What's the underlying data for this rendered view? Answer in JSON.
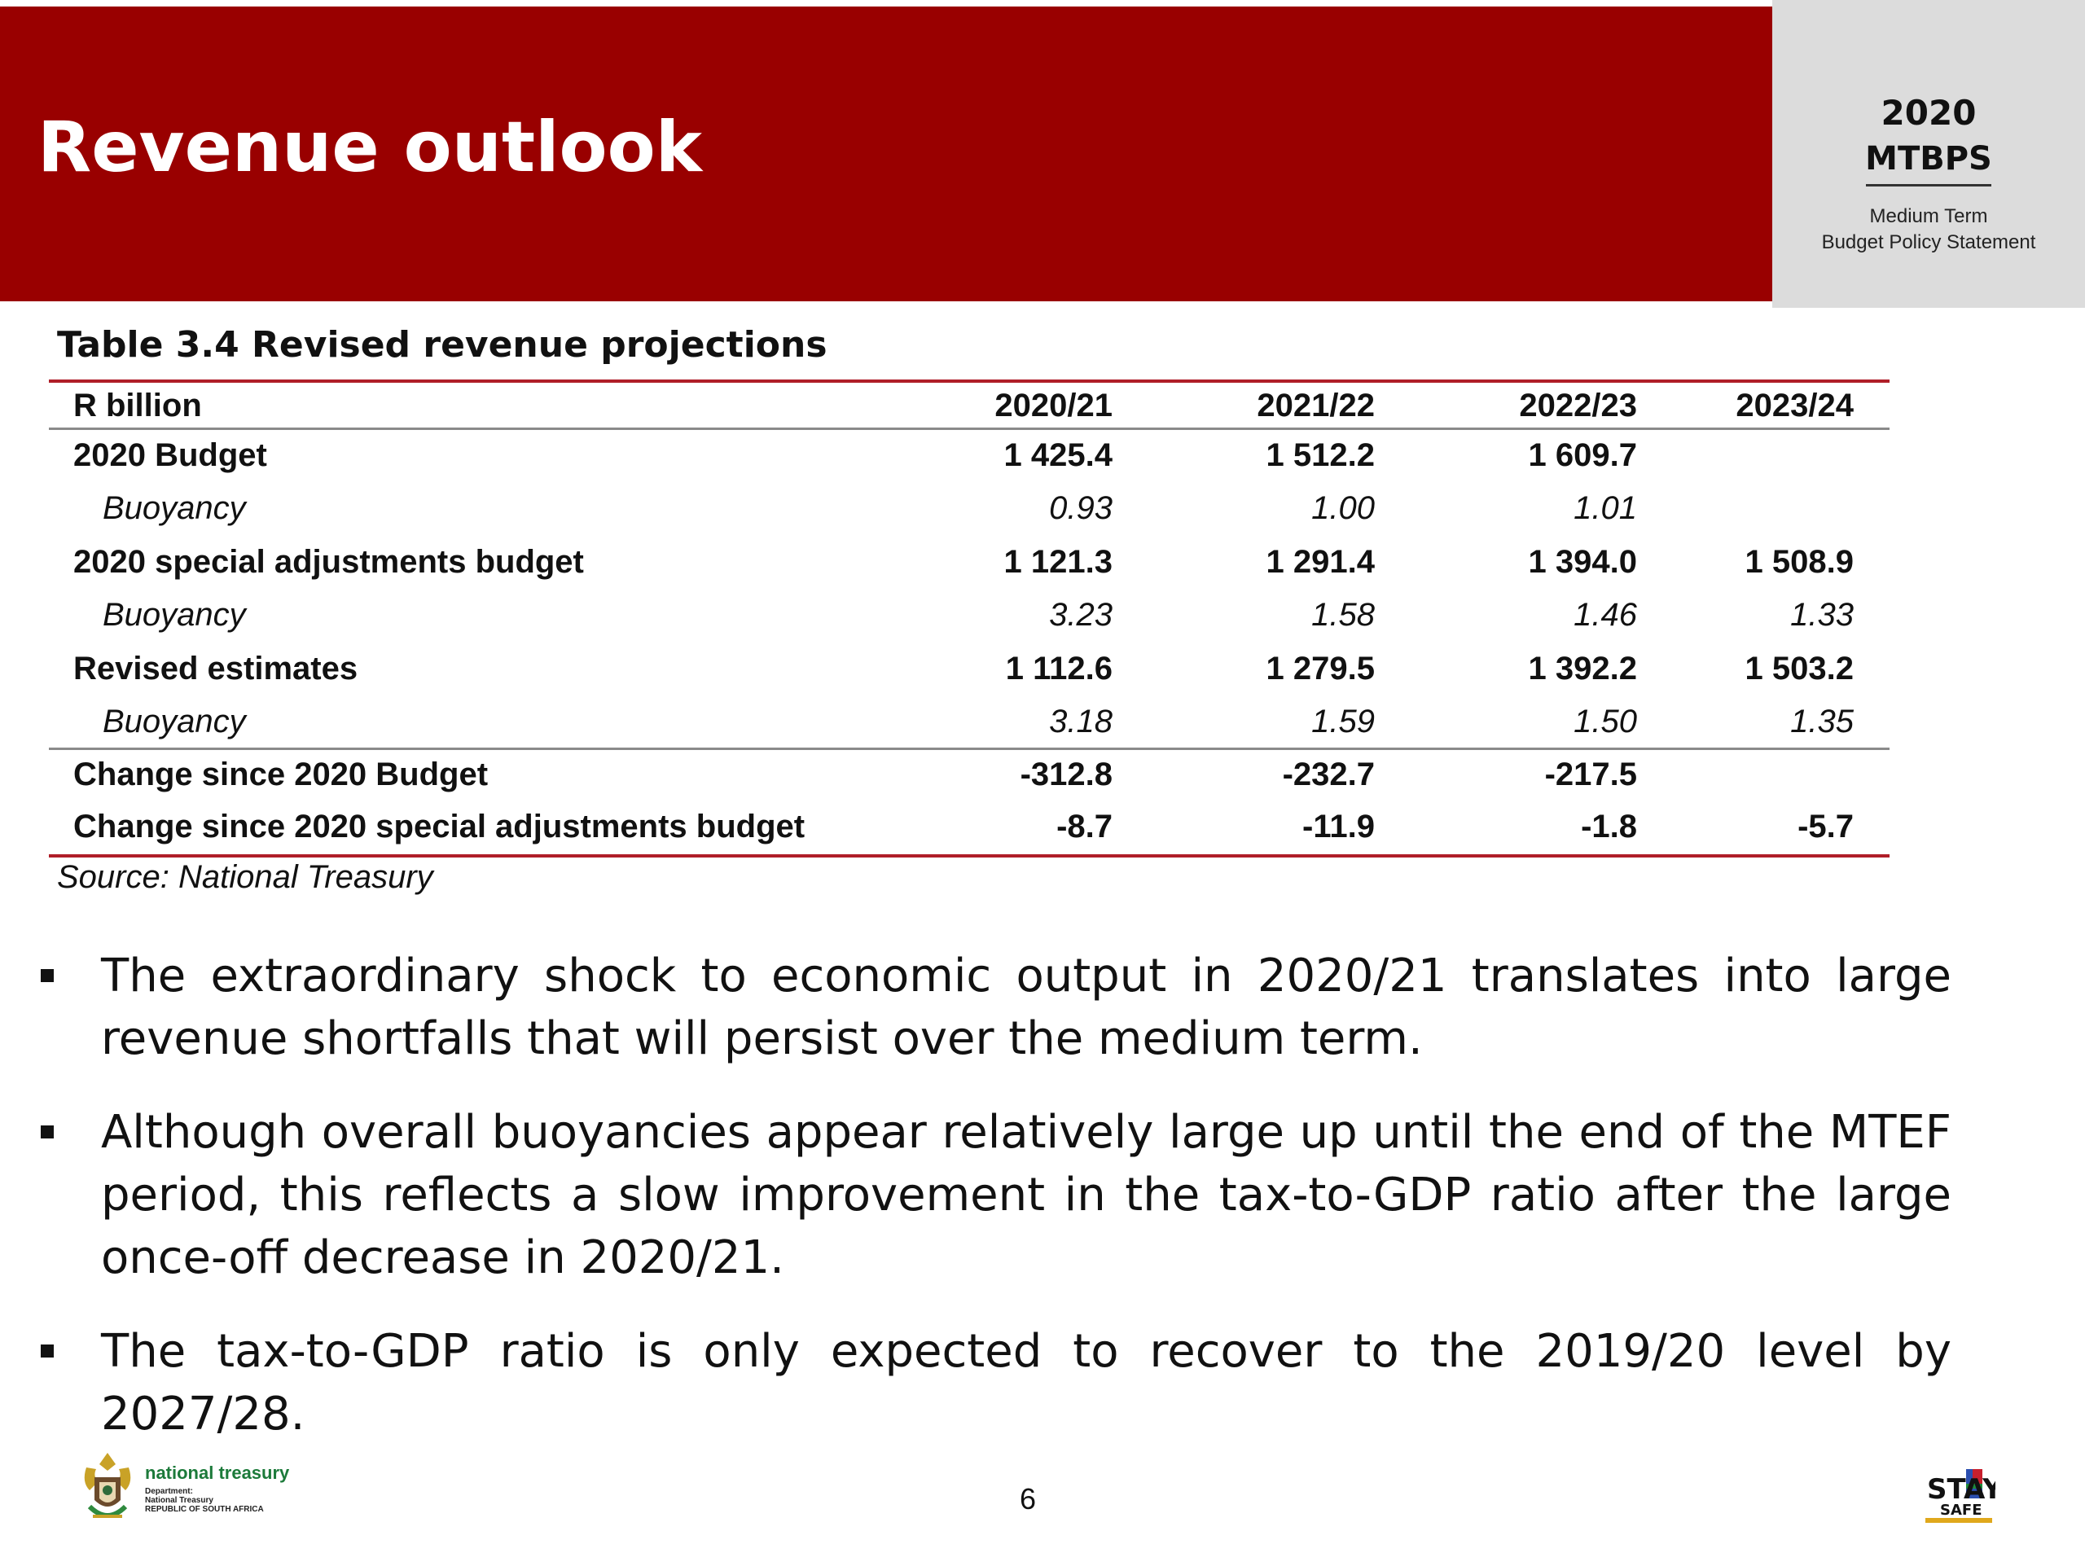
{
  "header": {
    "title": "Revenue outlook",
    "band_color": "#990000"
  },
  "side_panel": {
    "year": "2020",
    "name": "MTBPS",
    "subtitle_line1": "Medium Term",
    "subtitle_line2": "Budget Policy Statement"
  },
  "table": {
    "title": "Table 3.4  Revised revenue projections",
    "columns": [
      "R billion",
      "2020/21",
      "2021/22",
      "2022/23",
      "2023/24"
    ],
    "rows": [
      {
        "label": "2020 Budget",
        "values": [
          "1 425.4",
          "1 512.2",
          "1 609.7",
          ""
        ],
        "style": "main"
      },
      {
        "label": "Buoyancy",
        "values": [
          "0.93",
          "1.00",
          "1.01",
          ""
        ],
        "style": "buoyancy"
      },
      {
        "label": "2020 special adjustments budget",
        "values": [
          "1 121.3",
          "1 291.4",
          "1 394.0",
          "1 508.9"
        ],
        "style": "main"
      },
      {
        "label": "Buoyancy",
        "values": [
          "3.23",
          "1.58",
          "1.46",
          "1.33"
        ],
        "style": "buoyancy"
      },
      {
        "label": "Revised estimates",
        "values": [
          "1 112.6",
          "1 279.5",
          "1 392.2",
          "1 503.2"
        ],
        "style": "main"
      },
      {
        "label": "Buoyancy",
        "values": [
          "3.18",
          "1.59",
          "1.50",
          "1.35"
        ],
        "style": "buoyancy"
      },
      {
        "label": "Change since 2020 Budget",
        "values": [
          "-312.8",
          "-232.7",
          "-217.5",
          ""
        ],
        "style": "change"
      },
      {
        "label": "Change since 2020 special adjustments budget",
        "values": [
          "-8.7",
          "-11.9",
          "-1.8",
          "-5.7"
        ],
        "style": "change"
      }
    ],
    "source": "Source: National Treasury",
    "rule_color": "#b01e28"
  },
  "bullets": [
    "The extraordinary shock to economic output in 2020/21 translates into large revenue shortfalls that will persist over the medium term.",
    "Although overall buoyancies appear relatively large up until the end of the MTEF period, this reflects a slow improvement in the tax-to-GDP ratio after the large once-off decrease in 2020/21.",
    "The tax-to-GDP ratio is only expected to recover to the 2019/20 level by 2027/28."
  ],
  "footer": {
    "logo_text": "national treasury",
    "logo_subtext": "Department:\nNational Treasury\nREPUBLIC OF SOUTH AFRICA",
    "page_number": "6",
    "stay_safe_text": "STAY",
    "stay_safe_sub": "SAFE"
  }
}
